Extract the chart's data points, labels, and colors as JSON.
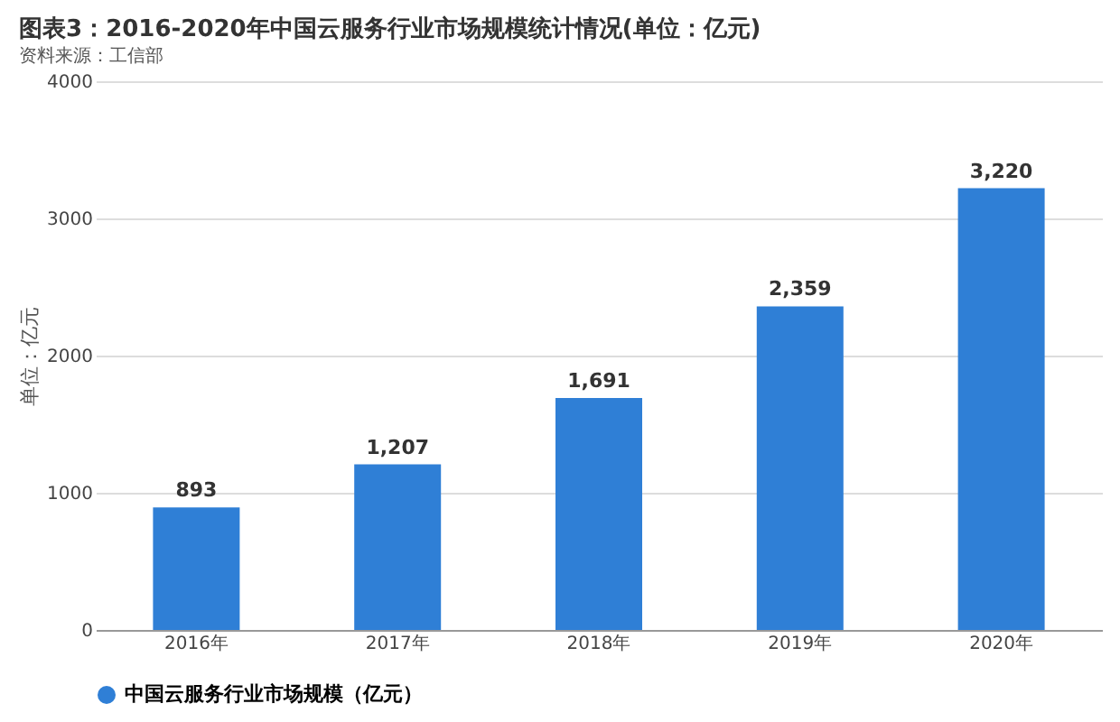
{
  "chart_data": {
    "type": "bar",
    "title": "图表3：2016-2020年中国云服务行业市场规模统计情况(单位：亿元)",
    "ylabel": "单位：亿元",
    "categories": [
      "2016年",
      "2017年",
      "2018年",
      "2019年",
      "2020年"
    ],
    "series": [
      {
        "name": "中国云服务行业市场规模（亿元）",
        "color": "#2f7fd6",
        "values": [
          893,
          1207,
          1691,
          2359,
          3220
        ],
        "value_labels": [
          "893",
          "1,207",
          "1,691",
          "2,359",
          "3,220"
        ]
      }
    ],
    "ylim": [
      0,
      4000
    ],
    "yticks": [
      0,
      1000,
      2000,
      3000,
      4000
    ],
    "grid": "y",
    "legend": "bottom",
    "annotations": [
      "资料来源：工信部"
    ]
  }
}
